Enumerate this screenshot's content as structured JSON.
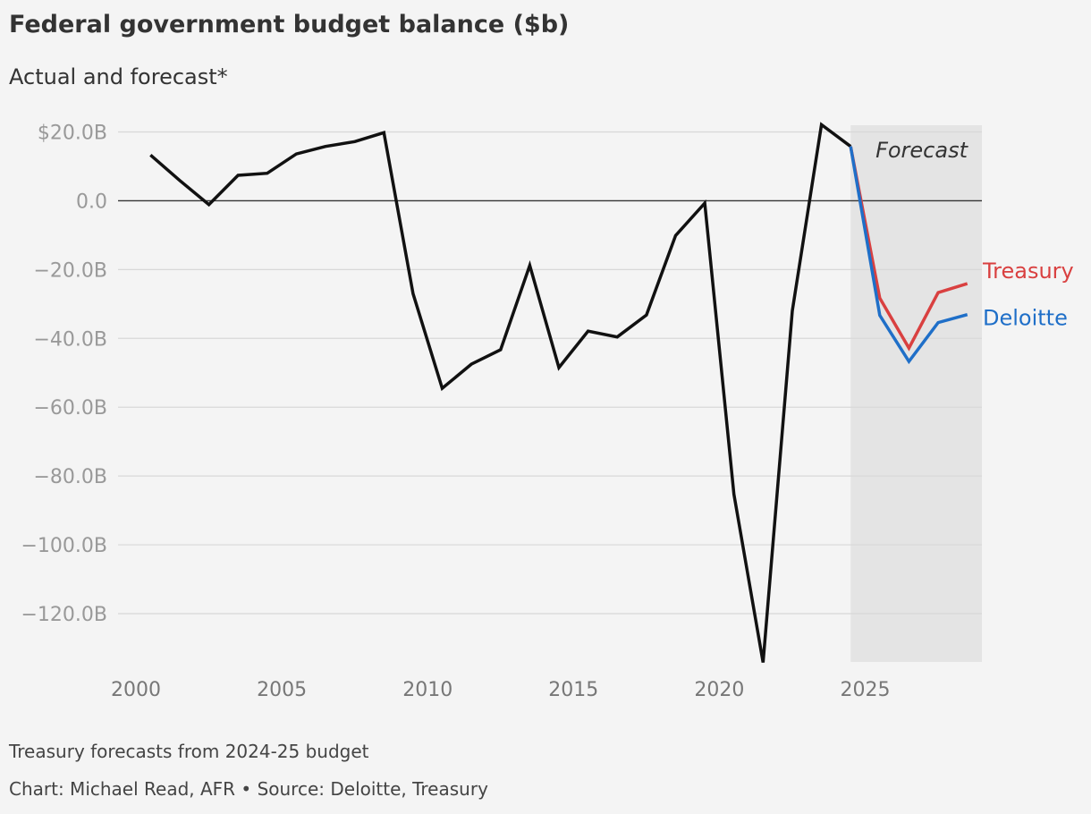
{
  "header": {
    "title": "Federal government budget balance ($b)",
    "subtitle": "Actual and forecast*"
  },
  "footer": {
    "note": "Treasury forecasts from 2024-25 budget",
    "credit": "Chart: Michael Read, AFR • Source: Deloitte, Treasury"
  },
  "colors": {
    "actual": "#111111",
    "treasury": "#d94040",
    "deloitte": "#1f6fc8",
    "forecast_shade": "#e4e4e4",
    "grid": "#d8d8d8",
    "zero_line": "#333333"
  },
  "chart_data": {
    "type": "line",
    "xlim": [
      2000,
      2029
    ],
    "ylim": [
      -135,
      22
    ],
    "x_ticks": [
      {
        "value": 2000,
        "label": "2000"
      },
      {
        "value": 2005,
        "label": "2005"
      },
      {
        "value": 2010,
        "label": "2010"
      },
      {
        "value": 2015,
        "label": "2015"
      },
      {
        "value": 2020,
        "label": "2020"
      },
      {
        "value": 2025,
        "label": "2025"
      }
    ],
    "y_ticks": [
      {
        "value": 20,
        "label": "$20.0B"
      },
      {
        "value": 0,
        "label": "0.0"
      },
      {
        "value": -20,
        "label": "−20.0B"
      },
      {
        "value": -40,
        "label": "−40.0B"
      },
      {
        "value": -60,
        "label": "−60.0B"
      },
      {
        "value": -80,
        "label": "−80.0B"
      },
      {
        "value": -100,
        "label": "−100.0B"
      },
      {
        "value": -120,
        "label": "−120.0B"
      }
    ],
    "grid": true,
    "forecast_region": {
      "x_start": 2024.5,
      "x_end": 2029,
      "label": "Forecast"
    },
    "series": [
      {
        "key": "actual",
        "x": [
          2000.5,
          2001.5,
          2002.5,
          2003.5,
          2004.5,
          2005.5,
          2006.5,
          2007.5,
          2008.5,
          2009.5,
          2010.5,
          2011.5,
          2012.5,
          2013.5,
          2014.5,
          2015.5,
          2016.5,
          2017.5,
          2018.5,
          2019.5,
          2020.5,
          2021.5,
          2022.5,
          2023.5,
          2024.5
        ],
        "values": [
          13.3,
          5.9,
          -1.1,
          7.4,
          8.0,
          13.6,
          15.8,
          17.2,
          19.8,
          -27.0,
          -54.5,
          -47.5,
          -43.3,
          -18.8,
          -48.5,
          -37.9,
          -39.6,
          -33.2,
          -10.1,
          -0.7,
          -85.3,
          -134.2,
          -32.0,
          22.1,
          15.8
        ]
      },
      {
        "key": "treasury",
        "name": "Treasury",
        "x": [
          2024.5,
          2025.5,
          2026.5,
          2027.5,
          2028.5
        ],
        "values": [
          15.8,
          -28.3,
          -42.8,
          -26.7,
          -24.1
        ]
      },
      {
        "key": "deloitte",
        "name": "Deloitte",
        "x": [
          2024.5,
          2025.5,
          2026.5,
          2027.5,
          2028.5
        ],
        "values": [
          15.8,
          -33.3,
          -46.7,
          -35.4,
          -33.1
        ]
      }
    ]
  }
}
